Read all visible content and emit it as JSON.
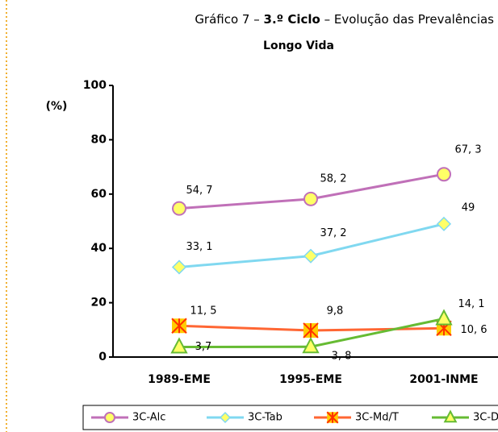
{
  "chart_data": {
    "type": "line",
    "title": [
      "Gráfico 7 – ",
      "3.º Ciclo",
      " – Evolução das Prevalências"
    ],
    "subtitle": "Longo Vida",
    "y_label": "(%)",
    "categories": [
      "1989-EME",
      "1995-EME",
      "2001-INME"
    ],
    "ylim": [
      0,
      100
    ],
    "yticks": [
      0,
      20,
      40,
      60,
      80,
      100
    ],
    "series": [
      {
        "name": "3C-Alc",
        "color": "#c070b8",
        "marker": "circle",
        "values": [
          54.7,
          58.2,
          67.3
        ],
        "value_labels": [
          "54, 7",
          "58, 2",
          "67, 3"
        ]
      },
      {
        "name": "3C-Tab",
        "color": "#80d8f0",
        "marker": "diamond",
        "values": [
          33.1,
          37.2,
          49
        ],
        "value_labels": [
          "33, 1",
          "37, 2",
          "49"
        ]
      },
      {
        "name": "3C-Md/T",
        "color": "#ff6633",
        "marker": "star-square",
        "values": [
          11.5,
          9.8,
          10.6
        ],
        "value_labels": [
          "11, 5",
          "9,8",
          "10, 6"
        ]
      },
      {
        "name": "3C-D",
        "color": "#66bb33",
        "marker": "triangle",
        "values": [
          3.7,
          3.8,
          14.1
        ],
        "value_labels": [
          "3,7",
          "3, 8",
          "14, 1"
        ]
      }
    ]
  }
}
